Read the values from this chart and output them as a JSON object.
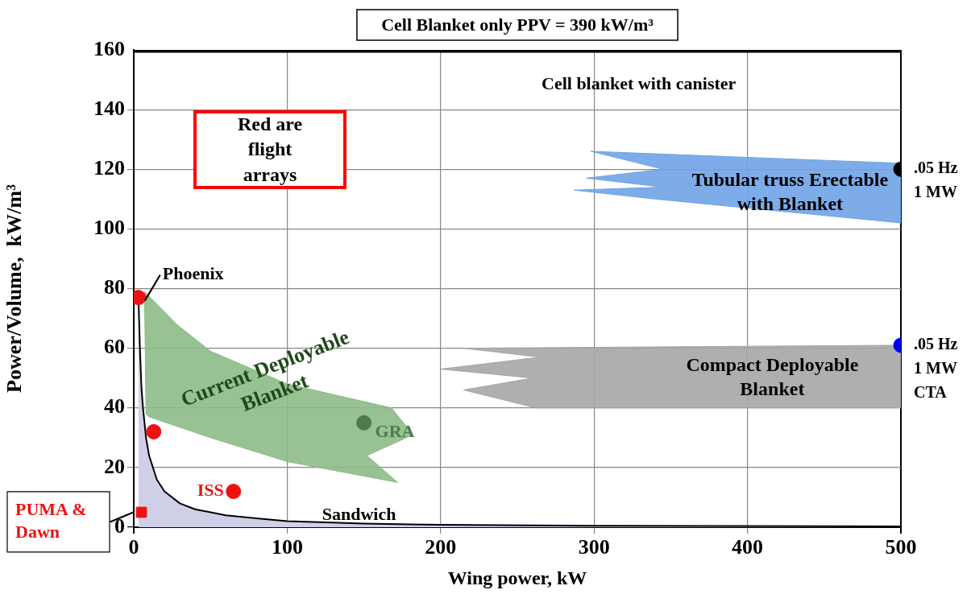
{
  "chart_data": {
    "type": "scatter",
    "title": "Cell Blanket only PPV = 390 kW/m³",
    "xlabel": "Wing power, kW",
    "ylabel": "Power/Volume,  kW/m³",
    "xlim": [
      0,
      500
    ],
    "xticks": [
      0,
      100,
      200,
      300,
      400,
      500
    ],
    "ylim": [
      0,
      160
    ],
    "yticks": [
      0,
      20,
      40,
      60,
      80,
      100,
      120,
      140,
      160
    ],
    "grid": true,
    "legend": false,
    "series": [
      {
        "name": "Cell blanket with canister",
        "type": "line",
        "color": "#000000",
        "marker": "none",
        "x": [
          0,
          500
        ],
        "values": [
          160,
          160
        ]
      },
      {
        "name": "Sandwich",
        "type": "area",
        "color": "#cfd0e8",
        "marker": "none",
        "x": [
          3,
          4,
          5,
          6,
          8,
          10,
          15,
          20,
          30,
          40,
          60,
          80,
          100,
          150,
          200,
          300,
          500
        ],
        "values": [
          78,
          60,
          47,
          40,
          30,
          24,
          16,
          12,
          8,
          6,
          4,
          3,
          2,
          1.2,
          0.8,
          0.5,
          0.3
        ]
      },
      {
        "name": "Current Deployable Blanket",
        "type": "area",
        "color": "#8dbb87",
        "marker": "none",
        "x": [
          7,
          28,
          50,
          100,
          168,
          182,
          152,
          172,
          100,
          50,
          10,
          8,
          7
        ],
        "values": [
          79,
          68,
          59,
          48,
          40,
          31,
          24,
          15,
          22,
          30,
          37,
          38,
          79
        ]
      },
      {
        "name": "Compact Deployable Blanket",
        "type": "area",
        "color": "#a6a6a6",
        "marker": "none",
        "x": [
          215,
          500,
          500,
          262,
          215,
          260,
          200,
          265,
          215
        ],
        "values": [
          60,
          61,
          40,
          40,
          46,
          50,
          53,
          57,
          60
        ]
      },
      {
        "name": "Tubular truss Erectable with Blanket",
        "type": "area",
        "color": "#6fa3e6",
        "marker": "none",
        "x": [
          298,
          500,
          500,
          340,
          287,
          345,
          295,
          345,
          298
        ],
        "values": [
          126,
          122,
          102,
          110,
          113,
          114,
          117,
          120,
          126
        ]
      },
      {
        "name": "Phoenix",
        "color": "#ee1111",
        "marker": "circle",
        "x": [
          3
        ],
        "values": [
          77
        ]
      },
      {
        "color": "#ee1111",
        "marker": "circle",
        "x": [
          13
        ],
        "values": [
          32
        ]
      },
      {
        "name": "GRA",
        "color": "#4f7a4f",
        "marker": "circle",
        "x": [
          150
        ],
        "values": [
          35
        ]
      },
      {
        "name": "ISS",
        "color": "#ee1111",
        "marker": "circle",
        "x": [
          65
        ],
        "values": [
          12
        ]
      },
      {
        "name": "PUMA & Dawn",
        "color": "#ee1111",
        "marker": "square",
        "x": [
          5
        ],
        "values": [
          5
        ]
      },
      {
        "color": "#000000",
        "marker": "circle",
        "x": [
          500
        ],
        "values": [
          120
        ]
      },
      {
        "color": "#0000ee",
        "marker": "circle",
        "x": [
          500
        ],
        "values": [
          61
        ]
      }
    ],
    "annotations": [
      "Red are flight arrays",
      {
        "text": ".05 Hz\n1 MW",
        "x": 500,
        "y": 120
      },
      {
        "text": ".05 Hz\n1 MW\nCTA",
        "x": 500,
        "y": 61
      }
    ]
  }
}
